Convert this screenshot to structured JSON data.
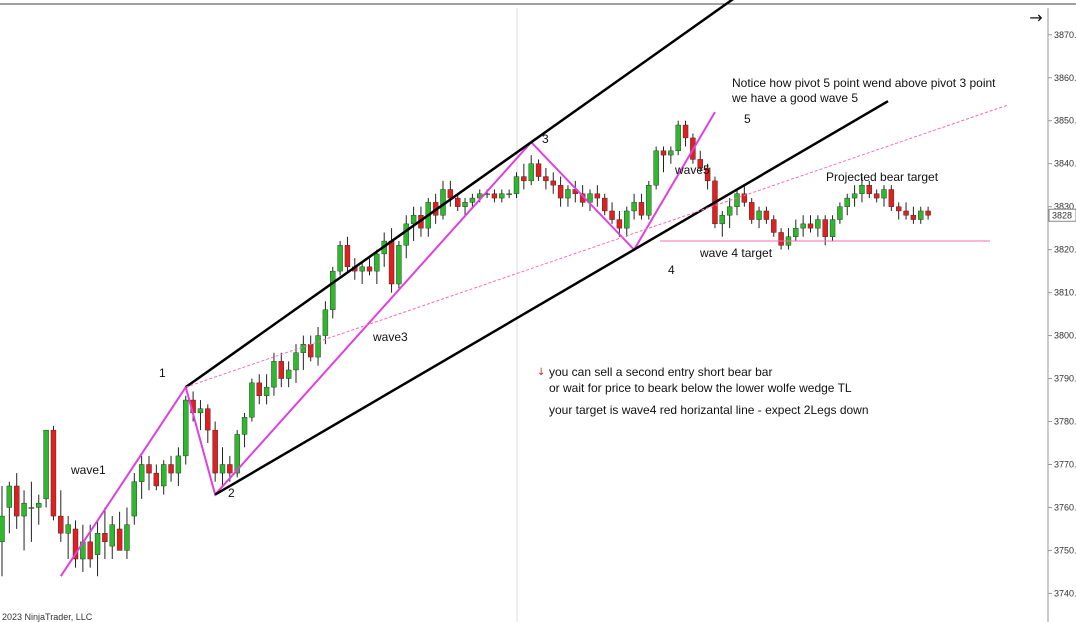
{
  "toolbar": {
    "arrow_icon": "arrow-right-icon",
    "arrow_glyph": "→"
  },
  "footer": {
    "copyright": "2023 NinjaTrader, LLC"
  },
  "colors": {
    "up": "#2db82d",
    "down": "#e02020",
    "wave": "#e040e0",
    "trend": "#000000",
    "pivot_line": "#ff69b4"
  },
  "annotations": {
    "notice1": "Notice how pivot 5 point wend above pivot 3 point",
    "notice2": "we have a good wave 5",
    "p1": "1",
    "p2": "2",
    "p3": "3",
    "p4": "4",
    "p5": "5",
    "wave1": "wave1",
    "wave3": "wave3",
    "wave5": "wave5",
    "projected": "Projected bear target",
    "w4target": "wave 4 target",
    "sell1": "you can sell a second entry short bear bar",
    "sell2": "or wait for price to beark below the lower wolfe wedge TL",
    "sell3": "your target is wave4 red horizantal line - expect 2Legs down"
  },
  "chart_data": {
    "type": "candlestick",
    "y_axis": {
      "min": 3738,
      "max": 3876,
      "ticks": [
        "3870.",
        "3860.",
        "3850.",
        "3840.",
        "3830.",
        "3828",
        "3820.",
        "3810.",
        "3800.",
        "3790.",
        "3780.",
        "3770.",
        "3760.",
        "3750.",
        "3740."
      ],
      "current_price": "3828"
    },
    "candles": [
      {
        "o": 3752,
        "h": 3765,
        "l": 3744,
        "c": 3758
      },
      {
        "o": 3760,
        "h": 3766,
        "l": 3754,
        "c": 3765
      },
      {
        "o": 3765,
        "h": 3768,
        "l": 3755,
        "c": 3758
      },
      {
        "o": 3758,
        "h": 3764,
        "l": 3750,
        "c": 3761
      },
      {
        "o": 3760,
        "h": 3766,
        "l": 3752,
        "c": 3760
      },
      {
        "o": 3760,
        "h": 3763,
        "l": 3756,
        "c": 3761
      },
      {
        "o": 3762,
        "h": 3778,
        "l": 3760,
        "c": 3778
      },
      {
        "o": 3778,
        "h": 3779,
        "l": 3757,
        "c": 3758
      },
      {
        "o": 3758,
        "h": 3764,
        "l": 3752,
        "c": 3754
      },
      {
        "o": 3754,
        "h": 3758,
        "l": 3748,
        "c": 3756
      },
      {
        "o": 3755,
        "h": 3757,
        "l": 3746,
        "c": 3748
      },
      {
        "o": 3748,
        "h": 3756,
        "l": 3745,
        "c": 3752
      },
      {
        "o": 3752,
        "h": 3756,
        "l": 3746,
        "c": 3748
      },
      {
        "o": 3749,
        "h": 3757,
        "l": 3744,
        "c": 3754
      },
      {
        "o": 3754,
        "h": 3760,
        "l": 3748,
        "c": 3752
      },
      {
        "o": 3751,
        "h": 3758,
        "l": 3748,
        "c": 3756
      },
      {
        "o": 3755,
        "h": 3759,
        "l": 3750,
        "c": 3750
      },
      {
        "o": 3750,
        "h": 3760,
        "l": 3748,
        "c": 3756
      },
      {
        "o": 3758,
        "h": 3768,
        "l": 3756,
        "c": 3766
      },
      {
        "o": 3766,
        "h": 3772,
        "l": 3762,
        "c": 3770
      },
      {
        "o": 3770,
        "h": 3772,
        "l": 3764,
        "c": 3768
      },
      {
        "o": 3768,
        "h": 3770,
        "l": 3764,
        "c": 3765
      },
      {
        "o": 3765,
        "h": 3771,
        "l": 3763,
        "c": 3770
      },
      {
        "o": 3770,
        "h": 3772,
        "l": 3766,
        "c": 3768
      },
      {
        "o": 3768,
        "h": 3774,
        "l": 3765,
        "c": 3772
      },
      {
        "o": 3772,
        "h": 3786,
        "l": 3770,
        "c": 3785
      },
      {
        "o": 3785,
        "h": 3787,
        "l": 3780,
        "c": 3782
      },
      {
        "o": 3782,
        "h": 3785,
        "l": 3778,
        "c": 3783
      },
      {
        "o": 3783,
        "h": 3784,
        "l": 3775,
        "c": 3778
      },
      {
        "o": 3778,
        "h": 3780,
        "l": 3766,
        "c": 3768
      },
      {
        "o": 3768,
        "h": 3774,
        "l": 3765,
        "c": 3770
      },
      {
        "o": 3770,
        "h": 3772,
        "l": 3766,
        "c": 3768
      },
      {
        "o": 3768,
        "h": 3778,
        "l": 3767,
        "c": 3777
      },
      {
        "o": 3777,
        "h": 3782,
        "l": 3774,
        "c": 3781
      },
      {
        "o": 3781,
        "h": 3790,
        "l": 3780,
        "c": 3789
      },
      {
        "o": 3789,
        "h": 3791,
        "l": 3784,
        "c": 3786
      },
      {
        "o": 3786,
        "h": 3791,
        "l": 3784,
        "c": 3788
      },
      {
        "o": 3788,
        "h": 3796,
        "l": 3786,
        "c": 3794
      },
      {
        "o": 3794,
        "h": 3796,
        "l": 3788,
        "c": 3790
      },
      {
        "o": 3790,
        "h": 3794,
        "l": 3788,
        "c": 3792
      },
      {
        "o": 3792,
        "h": 3798,
        "l": 3789,
        "c": 3796
      },
      {
        "o": 3796,
        "h": 3800,
        "l": 3792,
        "c": 3798
      },
      {
        "o": 3798,
        "h": 3800,
        "l": 3794,
        "c": 3795
      },
      {
        "o": 3795,
        "h": 3802,
        "l": 3793,
        "c": 3800
      },
      {
        "o": 3800,
        "h": 3808,
        "l": 3798,
        "c": 3806
      },
      {
        "o": 3806,
        "h": 3816,
        "l": 3804,
        "c": 3815
      },
      {
        "o": 3815,
        "h": 3822,
        "l": 3814,
        "c": 3821
      },
      {
        "o": 3821,
        "h": 3823,
        "l": 3815,
        "c": 3816
      },
      {
        "o": 3816,
        "h": 3818,
        "l": 3813,
        "c": 3815
      },
      {
        "o": 3815,
        "h": 3817,
        "l": 3812,
        "c": 3816
      },
      {
        "o": 3816,
        "h": 3818,
        "l": 3814,
        "c": 3815
      },
      {
        "o": 3815,
        "h": 3820,
        "l": 3812,
        "c": 3819
      },
      {
        "o": 3819,
        "h": 3824,
        "l": 3816,
        "c": 3822
      },
      {
        "o": 3822,
        "h": 3825,
        "l": 3810,
        "c": 3812
      },
      {
        "o": 3812,
        "h": 3822,
        "l": 3811,
        "c": 3821
      },
      {
        "o": 3821,
        "h": 3828,
        "l": 3818,
        "c": 3826
      },
      {
        "o": 3826,
        "h": 3830,
        "l": 3822,
        "c": 3828
      },
      {
        "o": 3828,
        "h": 3830,
        "l": 3823,
        "c": 3825
      },
      {
        "o": 3825,
        "h": 3832,
        "l": 3823,
        "c": 3831
      },
      {
        "o": 3831,
        "h": 3833,
        "l": 3826,
        "c": 3828
      },
      {
        "o": 3828,
        "h": 3836,
        "l": 3827,
        "c": 3834
      },
      {
        "o": 3834,
        "h": 3836,
        "l": 3830,
        "c": 3832
      },
      {
        "o": 3832,
        "h": 3833,
        "l": 3829,
        "c": 3830
      },
      {
        "o": 3830,
        "h": 3832,
        "l": 3828,
        "c": 3831
      },
      {
        "o": 3831,
        "h": 3833,
        "l": 3830,
        "c": 3832
      },
      {
        "o": 3832,
        "h": 3834,
        "l": 3831,
        "c": 3833
      },
      {
        "o": 3833,
        "h": 3834,
        "l": 3832,
        "c": 3833
      },
      {
        "o": 3833,
        "h": 3834,
        "l": 3831,
        "c": 3832
      },
      {
        "o": 3832,
        "h": 3834,
        "l": 3831,
        "c": 3833
      },
      {
        "o": 3833,
        "h": 3834,
        "l": 3832,
        "c": 3833
      },
      {
        "o": 3833,
        "h": 3838,
        "l": 3832,
        "c": 3837
      },
      {
        "o": 3837,
        "h": 3840,
        "l": 3834,
        "c": 3836
      },
      {
        "o": 3836,
        "h": 3842,
        "l": 3835,
        "c": 3840
      },
      {
        "o": 3840,
        "h": 3841,
        "l": 3836,
        "c": 3837
      },
      {
        "o": 3837,
        "h": 3839,
        "l": 3834,
        "c": 3836
      },
      {
        "o": 3836,
        "h": 3838,
        "l": 3833,
        "c": 3835
      },
      {
        "o": 3835,
        "h": 3837,
        "l": 3830,
        "c": 3832
      },
      {
        "o": 3832,
        "h": 3835,
        "l": 3830,
        "c": 3834
      },
      {
        "o": 3834,
        "h": 3836,
        "l": 3831,
        "c": 3833
      },
      {
        "o": 3833,
        "h": 3835,
        "l": 3830,
        "c": 3831
      },
      {
        "o": 3831,
        "h": 3834,
        "l": 3829,
        "c": 3833
      },
      {
        "o": 3833,
        "h": 3835,
        "l": 3830,
        "c": 3832
      },
      {
        "o": 3832,
        "h": 3833,
        "l": 3828,
        "c": 3829
      },
      {
        "o": 3829,
        "h": 3831,
        "l": 3826,
        "c": 3827
      },
      {
        "o": 3827,
        "h": 3829,
        "l": 3823,
        "c": 3825
      },
      {
        "o": 3825,
        "h": 3830,
        "l": 3823,
        "c": 3829
      },
      {
        "o": 3829,
        "h": 3833,
        "l": 3827,
        "c": 3831
      },
      {
        "o": 3831,
        "h": 3833,
        "l": 3827,
        "c": 3828
      },
      {
        "o": 3828,
        "h": 3836,
        "l": 3827,
        "c": 3835
      },
      {
        "o": 3835,
        "h": 3844,
        "l": 3834,
        "c": 3843
      },
      {
        "o": 3843,
        "h": 3844,
        "l": 3838,
        "c": 3842
      },
      {
        "o": 3842,
        "h": 3844,
        "l": 3840,
        "c": 3843
      },
      {
        "o": 3843,
        "h": 3850,
        "l": 3842,
        "c": 3849
      },
      {
        "o": 3849,
        "h": 3850,
        "l": 3844,
        "c": 3846
      },
      {
        "o": 3846,
        "h": 3847,
        "l": 3840,
        "c": 3841
      },
      {
        "o": 3841,
        "h": 3843,
        "l": 3838,
        "c": 3839
      },
      {
        "o": 3839,
        "h": 3840,
        "l": 3834,
        "c": 3836
      },
      {
        "o": 3836,
        "h": 3837,
        "l": 3825,
        "c": 3826
      },
      {
        "o": 3826,
        "h": 3829,
        "l": 3823,
        "c": 3828
      },
      {
        "o": 3828,
        "h": 3832,
        "l": 3825,
        "c": 3830
      },
      {
        "o": 3830,
        "h": 3834,
        "l": 3828,
        "c": 3833
      },
      {
        "o": 3833,
        "h": 3835,
        "l": 3830,
        "c": 3831
      },
      {
        "o": 3831,
        "h": 3832,
        "l": 3826,
        "c": 3827
      },
      {
        "o": 3827,
        "h": 3830,
        "l": 3825,
        "c": 3829
      },
      {
        "o": 3829,
        "h": 3830,
        "l": 3826,
        "c": 3827
      },
      {
        "o": 3827,
        "h": 3828,
        "l": 3823,
        "c": 3824
      },
      {
        "o": 3824,
        "h": 3825,
        "l": 3820,
        "c": 3821
      },
      {
        "o": 3821,
        "h": 3825,
        "l": 3820,
        "c": 3823
      },
      {
        "o": 3823,
        "h": 3827,
        "l": 3822,
        "c": 3825
      },
      {
        "o": 3825,
        "h": 3828,
        "l": 3823,
        "c": 3826
      },
      {
        "o": 3826,
        "h": 3828,
        "l": 3824,
        "c": 3825
      },
      {
        "o": 3825,
        "h": 3828,
        "l": 3823,
        "c": 3827
      },
      {
        "o": 3827,
        "h": 3828,
        "l": 3821,
        "c": 3823
      },
      {
        "o": 3823,
        "h": 3828,
        "l": 3822,
        "c": 3827
      },
      {
        "o": 3827,
        "h": 3831,
        "l": 3826,
        "c": 3830
      },
      {
        "o": 3830,
        "h": 3833,
        "l": 3828,
        "c": 3832
      },
      {
        "o": 3832,
        "h": 3835,
        "l": 3830,
        "c": 3833
      },
      {
        "o": 3833,
        "h": 3837,
        "l": 3831,
        "c": 3835
      },
      {
        "o": 3835,
        "h": 3836,
        "l": 3832,
        "c": 3833
      },
      {
        "o": 3833,
        "h": 3834,
        "l": 3831,
        "c": 3832
      },
      {
        "o": 3832,
        "h": 3835,
        "l": 3830,
        "c": 3834
      },
      {
        "o": 3834,
        "h": 3835,
        "l": 3829,
        "c": 3830
      },
      {
        "o": 3830,
        "h": 3831,
        "l": 3827,
        "c": 3829
      },
      {
        "o": 3829,
        "h": 3831,
        "l": 3827,
        "c": 3828
      },
      {
        "o": 3828,
        "h": 3830,
        "l": 3826,
        "c": 3827
      },
      {
        "o": 3827,
        "h": 3830,
        "l": 3826,
        "c": 3829
      },
      {
        "o": 3829,
        "h": 3830,
        "l": 3827,
        "c": 3828
      }
    ],
    "waves": [
      {
        "label": "1",
        "bar": 25,
        "price": 3788
      },
      {
        "label": "2",
        "bar": 29,
        "price": 3763
      },
      {
        "label": "3",
        "bar": 72,
        "price": 3845
      },
      {
        "label": "4",
        "bar": 86,
        "price": 3820
      },
      {
        "label": "5",
        "bar": 97,
        "price": 3852
      }
    ],
    "wave4_target": 3822
  }
}
